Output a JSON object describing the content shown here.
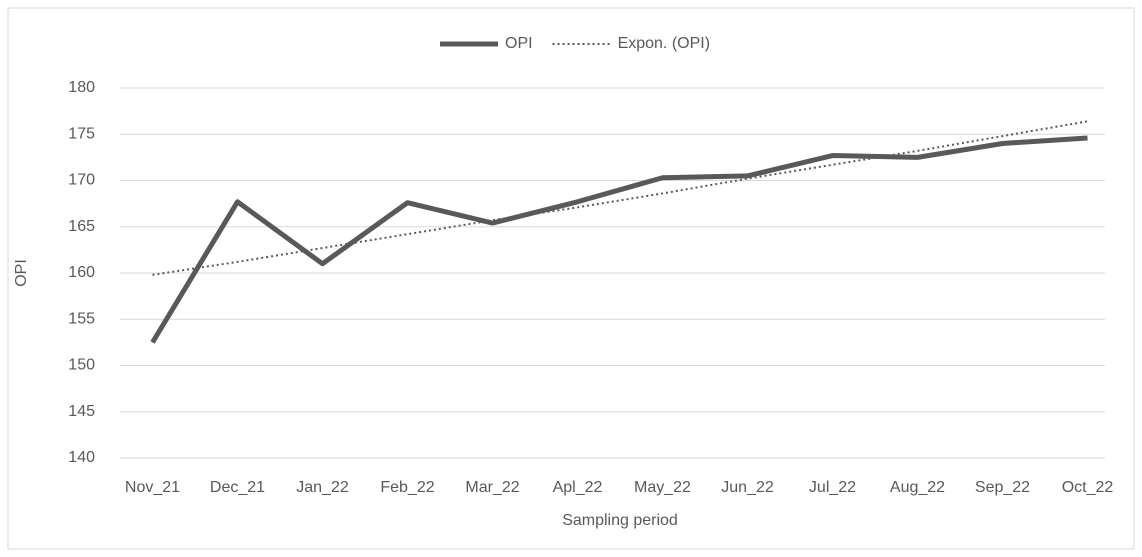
{
  "chart_data": {
    "type": "line",
    "categories": [
      "Nov_21",
      "Dec_21",
      "Jan_22",
      "Feb_22",
      "Mar_22",
      "Apl_22",
      "May_22",
      "Jun_22",
      "Jul_22",
      "Aug_22",
      "Sep_22",
      "Oct_22"
    ],
    "series": [
      {
        "name": "OPI",
        "color": "#595959",
        "style": "solid",
        "values": [
          152.5,
          167.7,
          161,
          167.6,
          165.4,
          167.7,
          170.3,
          170.5,
          172.7,
          172.5,
          174,
          174.6
        ]
      },
      {
        "name": "Expon. (OPI)",
        "color": "#595959",
        "style": "dotted",
        "values": [
          159.8,
          161.2,
          162.7,
          164.2,
          165.7,
          167.1,
          168.6,
          170.2,
          171.7,
          173.2,
          174.8,
          176.4
        ]
      }
    ],
    "ylabel": "OPI",
    "xlabel": "Sampling period",
    "ylim": [
      140,
      180
    ],
    "yticks": [
      140,
      145,
      150,
      155,
      160,
      165,
      170,
      175,
      180
    ],
    "grid": true,
    "legend": "top"
  }
}
